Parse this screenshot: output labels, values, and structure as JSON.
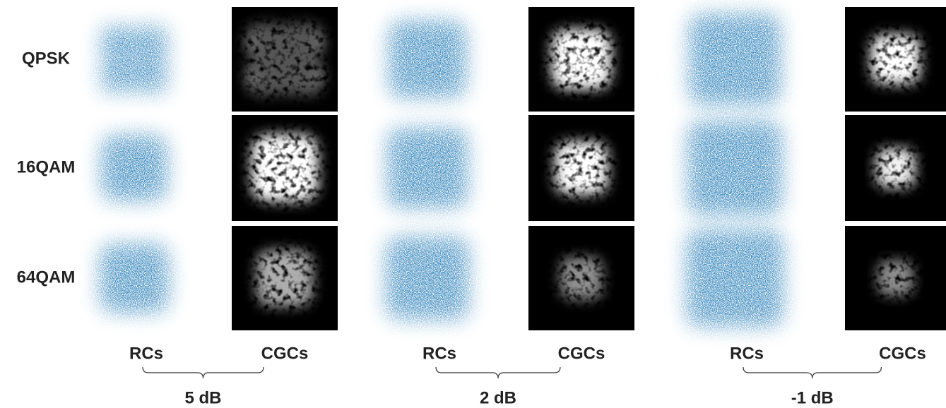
{
  "rows": [
    "QPSK",
    "16QAM",
    "64QAM"
  ],
  "groups": [
    {
      "left": "RCs",
      "right": "CGCs",
      "snr": "5 dB"
    },
    {
      "left": "RCs",
      "right": "CGCs",
      "snr": "2 dB"
    },
    {
      "left": "RCs",
      "right": "CGCs",
      "snr": "-1 dB"
    }
  ]
}
